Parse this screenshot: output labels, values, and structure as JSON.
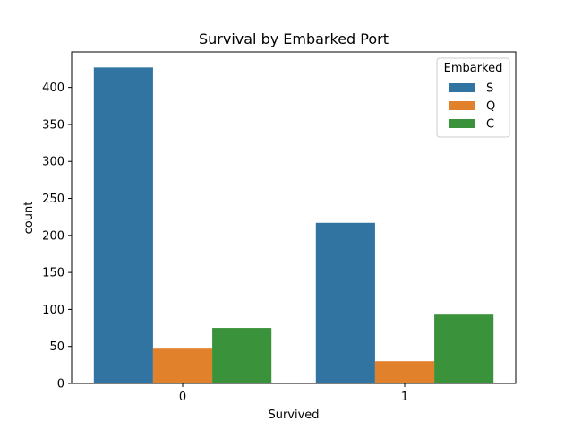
{
  "chart_data": {
    "type": "bar",
    "title": "Survival by Embarked Port",
    "xlabel": "Survived",
    "ylabel": "count",
    "categories": [
      "0",
      "1"
    ],
    "series": [
      {
        "name": "S",
        "color": "#3274a1",
        "values": [
          427,
          217
        ]
      },
      {
        "name": "Q",
        "color": "#e1812c",
        "values": [
          47,
          30
        ]
      },
      {
        "name": "C",
        "color": "#3a923a",
        "values": [
          75,
          93
        ]
      }
    ],
    "ylim": [
      0,
      448
    ],
    "yticks": [
      0,
      50,
      100,
      150,
      200,
      250,
      300,
      350,
      400
    ],
    "legend": {
      "title": "Embarked",
      "placement": "top-right"
    },
    "grid": false
  }
}
